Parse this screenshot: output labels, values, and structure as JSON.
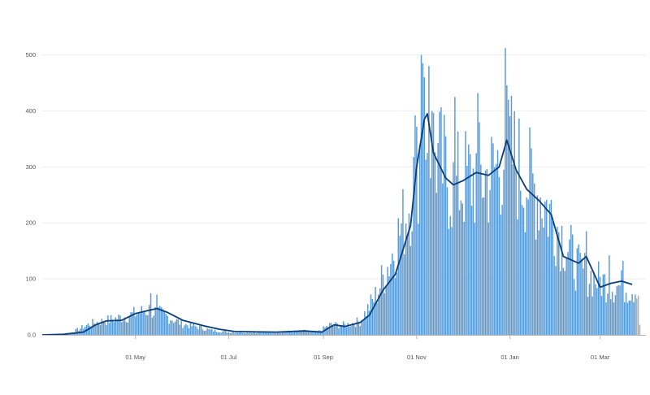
{
  "chart_data": {
    "type": "bar",
    "title": "",
    "xlabel": "",
    "ylabel": "",
    "ylim": [
      0,
      540
    ],
    "grid": true,
    "legend": "none",
    "yticks": [
      "0.0",
      "100",
      "200",
      "300",
      "400",
      "500"
    ],
    "xticks": [
      {
        "label": "01 May",
        "date": "2020-05-01"
      },
      {
        "label": "01 Jul",
        "date": "2020-07-01"
      },
      {
        "label": "01 Sep",
        "date": "2020-09-01"
      },
      {
        "label": "01 Nov",
        "date": "2020-11-01"
      },
      {
        "label": "01 Jan",
        "date": "2021-01-01"
      },
      {
        "label": "01 Mar",
        "date": "2021-03-01"
      }
    ],
    "x_start": "2020-03-01",
    "x_end": "2021-03-31",
    "series": [
      {
        "kind": "bar",
        "color": "#5b9bd5",
        "keypoints": [
          [
            "2020-03-01",
            0
          ],
          [
            "2020-03-10",
            1
          ],
          [
            "2020-03-20",
            4
          ],
          [
            "2020-04-01",
            20
          ],
          [
            "2020-04-15",
            28
          ],
          [
            "2020-04-25",
            34
          ],
          [
            "2020-05-10",
            46
          ],
          [
            "2020-05-20",
            36
          ],
          [
            "2020-06-01",
            20
          ],
          [
            "2020-06-10",
            15
          ],
          [
            "2020-06-20",
            8
          ],
          [
            "2020-07-01",
            5
          ],
          [
            "2020-08-01",
            5
          ],
          [
            "2020-08-20",
            7
          ],
          [
            "2020-08-28",
            5
          ],
          [
            "2020-09-05",
            18
          ],
          [
            "2020-09-15",
            18
          ],
          [
            "2020-09-25",
            25
          ],
          [
            "2020-10-05",
            70
          ],
          [
            "2020-10-15",
            140
          ],
          [
            "2020-10-25",
            220
          ],
          [
            "2020-11-01",
            300
          ],
          [
            "2020-11-06",
            395
          ],
          [
            "2020-11-15",
            320
          ],
          [
            "2020-11-25",
            270
          ],
          [
            "2020-12-05",
            285
          ],
          [
            "2020-12-20",
            290
          ],
          [
            "2020-12-30",
            345
          ],
          [
            "2021-01-10",
            290
          ],
          [
            "2021-01-20",
            260
          ],
          [
            "2021-02-01",
            200
          ],
          [
            "2021-02-15",
            120
          ],
          [
            "2021-02-28",
            100
          ],
          [
            "2021-03-10",
            90
          ],
          [
            "2021-03-24",
            85
          ]
        ],
        "spikes": [
          [
            "2020-11-04",
            500
          ],
          [
            "2020-11-05",
            485
          ],
          [
            "2020-11-06",
            460
          ],
          [
            "2020-11-09",
            480
          ],
          [
            "2020-11-11",
            400
          ],
          [
            "2020-11-26",
            425
          ],
          [
            "2020-12-11",
            432
          ],
          [
            "2020-12-29",
            512
          ],
          [
            "2020-12-31",
            420
          ],
          [
            "2020-10-31",
            392
          ],
          [
            "2020-05-11",
            74
          ],
          [
            "2020-05-15",
            72
          ],
          [
            "2021-02-20",
            185
          ],
          [
            "2021-03-07",
            142
          ],
          [
            "2021-03-16",
            132
          ]
        ]
      },
      {
        "kind": "bar",
        "color": "#b0b0b0",
        "points": [
          [
            "2021-03-25",
            65
          ],
          [
            "2021-03-26",
            70
          ],
          [
            "2021-03-27",
            18
          ]
        ]
      },
      {
        "kind": "line",
        "color": "#0b3d7a",
        "points": [
          [
            "2020-03-01",
            0
          ],
          [
            "2020-03-15",
            1
          ],
          [
            "2020-03-28",
            5
          ],
          [
            "2020-04-05",
            18
          ],
          [
            "2020-04-12",
            25
          ],
          [
            "2020-04-22",
            26
          ],
          [
            "2020-05-01",
            38
          ],
          [
            "2020-05-10",
            44
          ],
          [
            "2020-05-15",
            47
          ],
          [
            "2020-05-22",
            40
          ],
          [
            "2020-06-01",
            26
          ],
          [
            "2020-06-15",
            16
          ],
          [
            "2020-06-25",
            10
          ],
          [
            "2020-07-05",
            6
          ],
          [
            "2020-08-01",
            5
          ],
          [
            "2020-08-20",
            7
          ],
          [
            "2020-08-31",
            5
          ],
          [
            "2020-09-08",
            18
          ],
          [
            "2020-09-15",
            15
          ],
          [
            "2020-09-25",
            22
          ],
          [
            "2020-10-01",
            35
          ],
          [
            "2020-10-10",
            80
          ],
          [
            "2020-10-18",
            108
          ],
          [
            "2020-10-28",
            195
          ],
          [
            "2020-11-01",
            300
          ],
          [
            "2020-11-06",
            385
          ],
          [
            "2020-11-08",
            395
          ],
          [
            "2020-11-12",
            325
          ],
          [
            "2020-11-20",
            280
          ],
          [
            "2020-11-25",
            268
          ],
          [
            "2020-12-01",
            275
          ],
          [
            "2020-12-10",
            290
          ],
          [
            "2020-12-18",
            285
          ],
          [
            "2020-12-25",
            300
          ],
          [
            "2020-12-30",
            348
          ],
          [
            "2021-01-05",
            295
          ],
          [
            "2021-01-12",
            260
          ],
          [
            "2021-01-20",
            240
          ],
          [
            "2021-01-28",
            215
          ],
          [
            "2021-02-05",
            140
          ],
          [
            "2021-02-15",
            128
          ],
          [
            "2021-02-20",
            140
          ],
          [
            "2021-03-01",
            85
          ],
          [
            "2021-03-08",
            92
          ],
          [
            "2021-03-15",
            96
          ],
          [
            "2021-03-22",
            90
          ]
        ]
      }
    ]
  }
}
